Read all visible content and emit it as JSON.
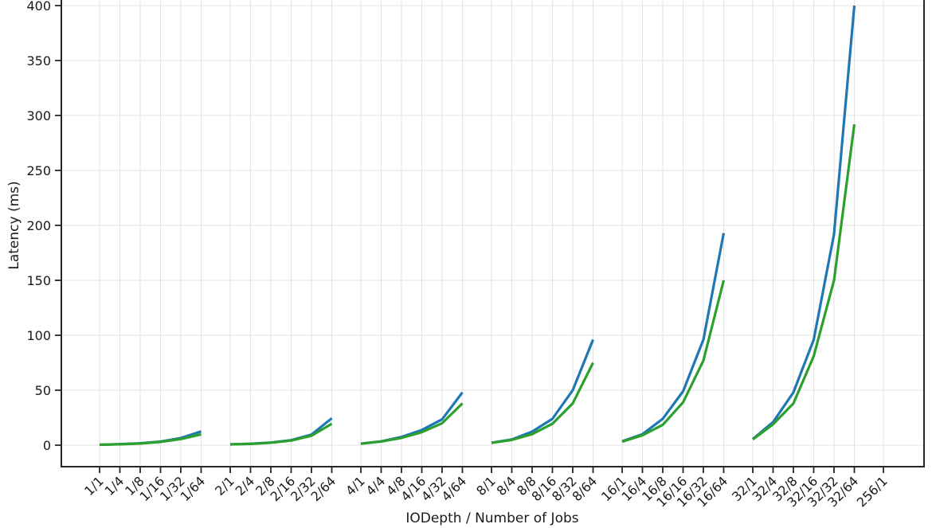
{
  "chart_data": {
    "type": "line",
    "title": "",
    "xlabel": "IODepth / Number of Jobs",
    "ylabel": "Latency (ms)",
    "ylim": [
      -20,
      405
    ],
    "yticks": [
      0,
      50,
      100,
      150,
      200,
      250,
      300,
      350,
      400
    ],
    "grid": true,
    "legend": "none",
    "categories": [
      "1/1",
      "1/4",
      "1/8",
      "1/16",
      "1/32",
      "1/64",
      "2/1",
      "2/4",
      "2/8",
      "2/16",
      "2/32",
      "2/64",
      "4/1",
      "4/4",
      "4/8",
      "4/16",
      "4/32",
      "4/64",
      "8/1",
      "8/4",
      "8/8",
      "8/16",
      "8/32",
      "8/64",
      "16/1",
      "16/4",
      "16/8",
      "16/16",
      "16/32",
      "16/64",
      "32/1",
      "32/4",
      "32/8",
      "32/16",
      "32/32",
      "32/64",
      "256/1"
    ],
    "series_colors": {
      "blue": "#1f77b4",
      "green": "#2ca02c"
    },
    "groups": [
      {
        "iodepth": "1",
        "categories": [
          "1/1",
          "1/4",
          "1/8",
          "1/16",
          "1/32",
          "1/64"
        ],
        "series": [
          {
            "name": "blue",
            "color": "#1f77b4",
            "values": [
              0.4,
              0.9,
              1.7,
              3.3,
              6.5,
              12.5
            ]
          },
          {
            "name": "green",
            "color": "#2ca02c",
            "values": [
              0.4,
              0.8,
              1.5,
              3.0,
              5.6,
              9.8
            ]
          }
        ]
      },
      {
        "iodepth": "2",
        "categories": [
          "2/1",
          "2/4",
          "2/8",
          "2/16",
          "2/32",
          "2/64"
        ],
        "series": [
          {
            "name": "blue",
            "color": "#1f77b4",
            "values": [
              0.7,
              1.3,
              2.4,
              4.6,
              9.6,
              24.5
            ]
          },
          {
            "name": "green",
            "color": "#2ca02c",
            "values": [
              0.7,
              1.2,
              2.2,
              4.2,
              8.6,
              19.5
            ]
          }
        ]
      },
      {
        "iodepth": "4",
        "categories": [
          "4/1",
          "4/4",
          "4/8",
          "4/16",
          "4/32",
          "4/64"
        ],
        "series": [
          {
            "name": "blue",
            "color": "#1f77b4",
            "values": [
              1.4,
              3.5,
              7.5,
              13.8,
              23.5,
              48
            ]
          },
          {
            "name": "green",
            "color": "#2ca02c",
            "values": [
              1.3,
              3.3,
              6.6,
              11.8,
              20,
              38
            ]
          }
        ]
      },
      {
        "iodepth": "8",
        "categories": [
          "8/1",
          "8/4",
          "8/8",
          "8/16",
          "8/32",
          "8/64"
        ],
        "series": [
          {
            "name": "blue",
            "color": "#1f77b4",
            "values": [
              2.2,
              5.2,
              12.3,
              24,
              50,
              96
            ]
          },
          {
            "name": "green",
            "color": "#2ca02c",
            "values": [
              2.1,
              4.8,
              10,
              19.5,
              38,
              75
            ]
          }
        ]
      },
      {
        "iodepth": "16",
        "categories": [
          "16/1",
          "16/4",
          "16/8",
          "16/16",
          "16/32",
          "16/64"
        ],
        "series": [
          {
            "name": "blue",
            "color": "#1f77b4",
            "values": [
              3.5,
              10,
              24,
              49,
              96,
              193
            ]
          },
          {
            "name": "green",
            "color": "#2ca02c",
            "values": [
              3.2,
              9,
              18.5,
              39,
              77,
              150
            ]
          }
        ]
      },
      {
        "iodepth": "32",
        "categories": [
          "32/1",
          "32/4",
          "32/8",
          "32/16",
          "32/32",
          "32/64"
        ],
        "series": [
          {
            "name": "blue",
            "color": "#1f77b4",
            "values": [
              5.5,
              21,
              48,
              96,
              192,
              400
            ]
          },
          {
            "name": "green",
            "color": "#2ca02c",
            "values": [
              5.2,
              19,
              38,
              81,
              150,
              292
            ]
          }
        ]
      }
    ],
    "trailing_category": "256/1"
  }
}
